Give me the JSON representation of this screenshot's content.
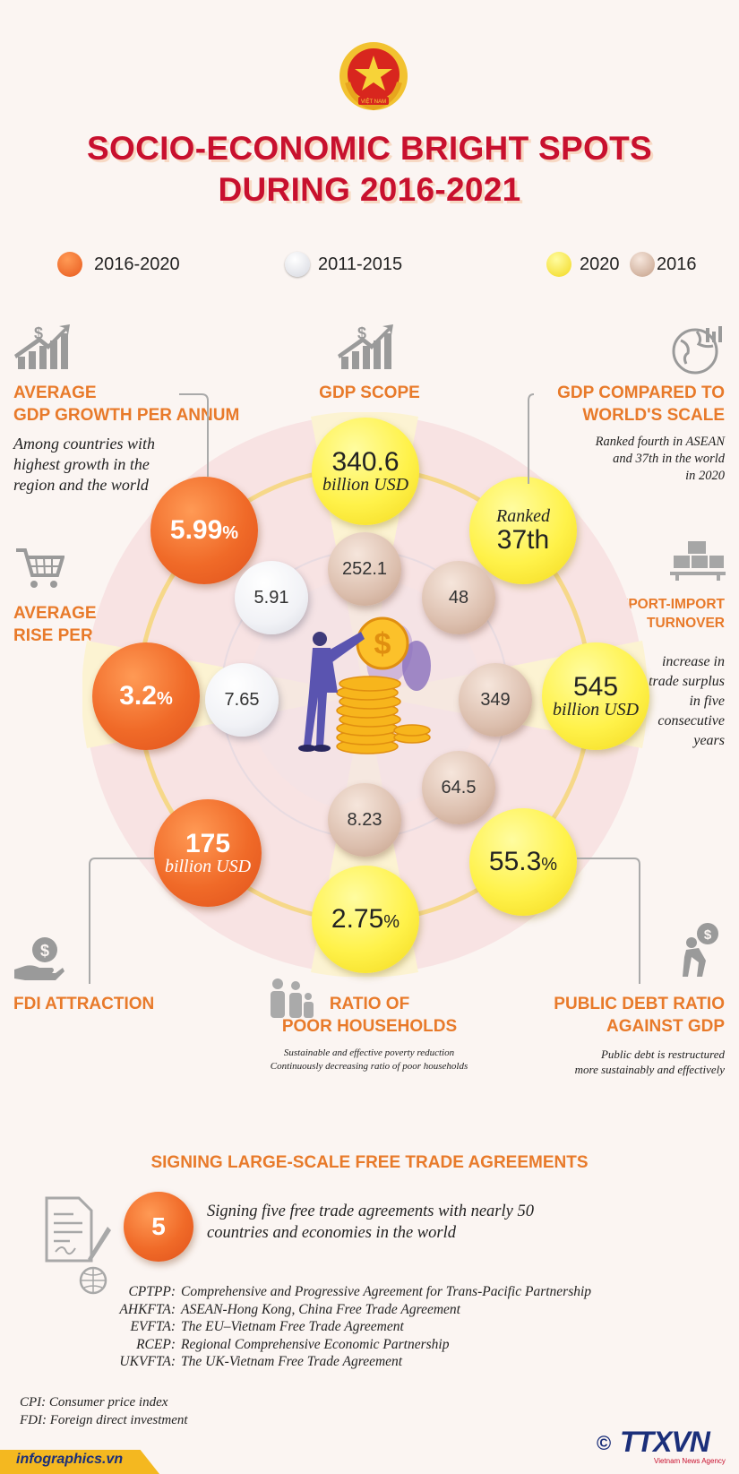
{
  "header": {
    "title_line1": "SOCIO-ECONOMIC BRIGHT SPOTS",
    "title_line2": "DURING 2016-2021",
    "emblem_text": "VIỆT NAM"
  },
  "legend": [
    {
      "label": "2016-2020",
      "color": "#f26b2a"
    },
    {
      "label": "2011-2015",
      "color": "#eceef3"
    },
    {
      "label": "2020",
      "color": "#fff03a"
    },
    {
      "label": "2016",
      "color": "#d9bca9"
    }
  ],
  "gdp_growth": {
    "heading_line1": "AVERAGE",
    "heading_line2": "GDP GROWTH PER ANNUM",
    "note_line1": "Among countries with",
    "note_line2": "highest growth in the",
    "note_line3": "region and the world",
    "value_2016_2020": "5.99",
    "value_2011_2015": "5.91",
    "unit": "%"
  },
  "gdp_scope": {
    "heading": "GDP SCOPE",
    "value_2020": "340.6",
    "unit_2020": "billion USD",
    "value_2016": "252.1"
  },
  "gdp_world": {
    "heading_line1": "GDP COMPARED TO",
    "heading_line2": "WORLD'S SCALE",
    "note_line1": "Ranked fourth in ASEAN",
    "note_line2": "and 37th in the world",
    "note_line3": "in 2020",
    "rank_label": "Ranked",
    "rank_value": "37th",
    "value_2016": "48"
  },
  "cpi": {
    "heading_line1": "AVERAGE CPI",
    "heading_line2": "RISE PER ANNUM",
    "value_2016_2020": "3.2",
    "value_2011_2015": "7.65",
    "unit": "%"
  },
  "export_import": {
    "heading_line1": "TOTAL EXPORT-IMPORT",
    "heading_line2": "TURNOVER",
    "note_line1": "increase in",
    "note_line2": "trade surplus",
    "note_line3": "in five",
    "note_line4": "consecutive",
    "note_line5": "years",
    "value_2020": "545",
    "unit_2020": "billion USD",
    "value_2016": "349"
  },
  "fdi": {
    "heading": "FDI ATTRACTION",
    "value_2016_2020": "175",
    "unit": "billion USD"
  },
  "poor_households": {
    "heading_line1": "RATIO OF",
    "heading_line2": "POOR HOUSEHOLDS",
    "note_line1": "Sustainable and effective poverty reduction",
    "note_line2": "Continuously decreasing ratio of poor households",
    "value_2020": "2.75",
    "value_2016": "8.23",
    "unit": "%"
  },
  "public_debt": {
    "heading_line1": "PUBLIC DEBT RATIO",
    "heading_line2": "AGAINST GDP",
    "note_line1": "Public debt is restructured",
    "note_line2": "more sustainably and effectively",
    "value_2020": "55.3",
    "value_2016": "64.5",
    "unit": "%"
  },
  "fta": {
    "heading": "SIGNING LARGE-SCALE FREE TRADE AGREEMENTS",
    "count": "5",
    "desc_line1": "Signing five free trade agreements with nearly 50",
    "desc_line2": "countries and economies in the world",
    "agreements": [
      {
        "abbr": "CPTPP:",
        "name": "Comprehensive and Progressive Agreement for Trans-Pacific Partnership"
      },
      {
        "abbr": "AHKFTA:",
        "name": "ASEAN-Hong Kong, China Free Trade Agreement"
      },
      {
        "abbr": "EVFTA:",
        "name": "The EU–Vietnam Free Trade Agreement"
      },
      {
        "abbr": "RCEP:",
        "name": "Regional Comprehensive Economic Partnership"
      },
      {
        "abbr": "UKVFTA:",
        "name": "The UK-Vietnam Free Trade Agreement"
      }
    ]
  },
  "footnotes": {
    "cpi": "CPI: Consumer price index",
    "fdi": "FDI: Foreign direct investment"
  },
  "footer": {
    "site": "infographics.vn",
    "logo_text": "TTXVN",
    "logo_sub": "Vietnam News Agency",
    "copyright": "©"
  }
}
